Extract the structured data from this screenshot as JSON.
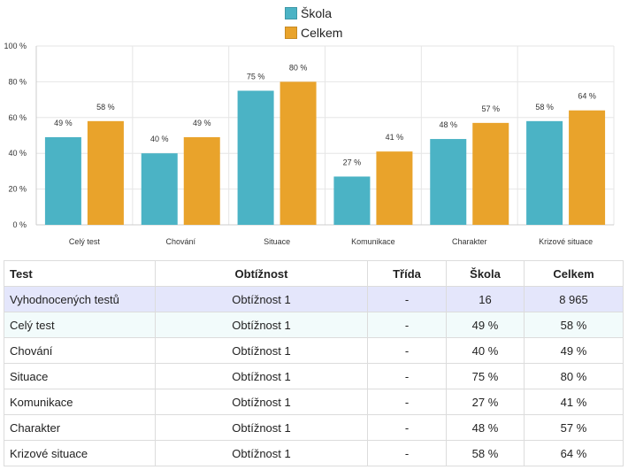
{
  "colors": {
    "skola": "#4bb3c5",
    "celkem": "#e9a32b",
    "grid": "#e6e6e6",
    "axis": "#cccccc"
  },
  "chart_data": {
    "type": "bar",
    "categories": [
      "Celý test",
      "Chování",
      "Situace",
      "Komunikace",
      "Charakter",
      "Krizové situace"
    ],
    "series": [
      {
        "name": "Škola",
        "values": [
          49,
          40,
          75,
          27,
          48,
          58
        ]
      },
      {
        "name": "Celkem",
        "values": [
          58,
          49,
          80,
          41,
          57,
          64
        ]
      }
    ],
    "ylim": [
      0,
      100
    ],
    "yticks": [
      "0 %",
      "20 %",
      "40 %",
      "60 %",
      "80 %",
      "100 %"
    ],
    "data_labels": [
      [
        "49 %",
        "40 %",
        "75 %",
        "27 %",
        "48 %",
        "58 %"
      ],
      [
        "58 %",
        "49 %",
        "80 %",
        "41 %",
        "57 %",
        "64 %"
      ]
    ],
    "grid": true,
    "legend": "top"
  },
  "table": {
    "headers": [
      "Test",
      "Obtížnost",
      "Třída",
      "Škola",
      "Celkem"
    ],
    "rows": [
      [
        "Vyhodnocených testů",
        "Obtížnost 1",
        "-",
        "16",
        "8 965"
      ],
      [
        "Celý test",
        "Obtížnost 1",
        "-",
        "49 %",
        "58 %"
      ],
      [
        "Chování",
        "Obtížnost 1",
        "-",
        "40 %",
        "49 %"
      ],
      [
        "Situace",
        "Obtížnost 1",
        "-",
        "75 %",
        "80 %"
      ],
      [
        "Komunikace",
        "Obtížnost 1",
        "-",
        "27 %",
        "41 %"
      ],
      [
        "Charakter",
        "Obtížnost 1",
        "-",
        "48 %",
        "57 %"
      ],
      [
        "Krizové situace",
        "Obtížnost 1",
        "-",
        "58 %",
        "64 %"
      ]
    ]
  }
}
